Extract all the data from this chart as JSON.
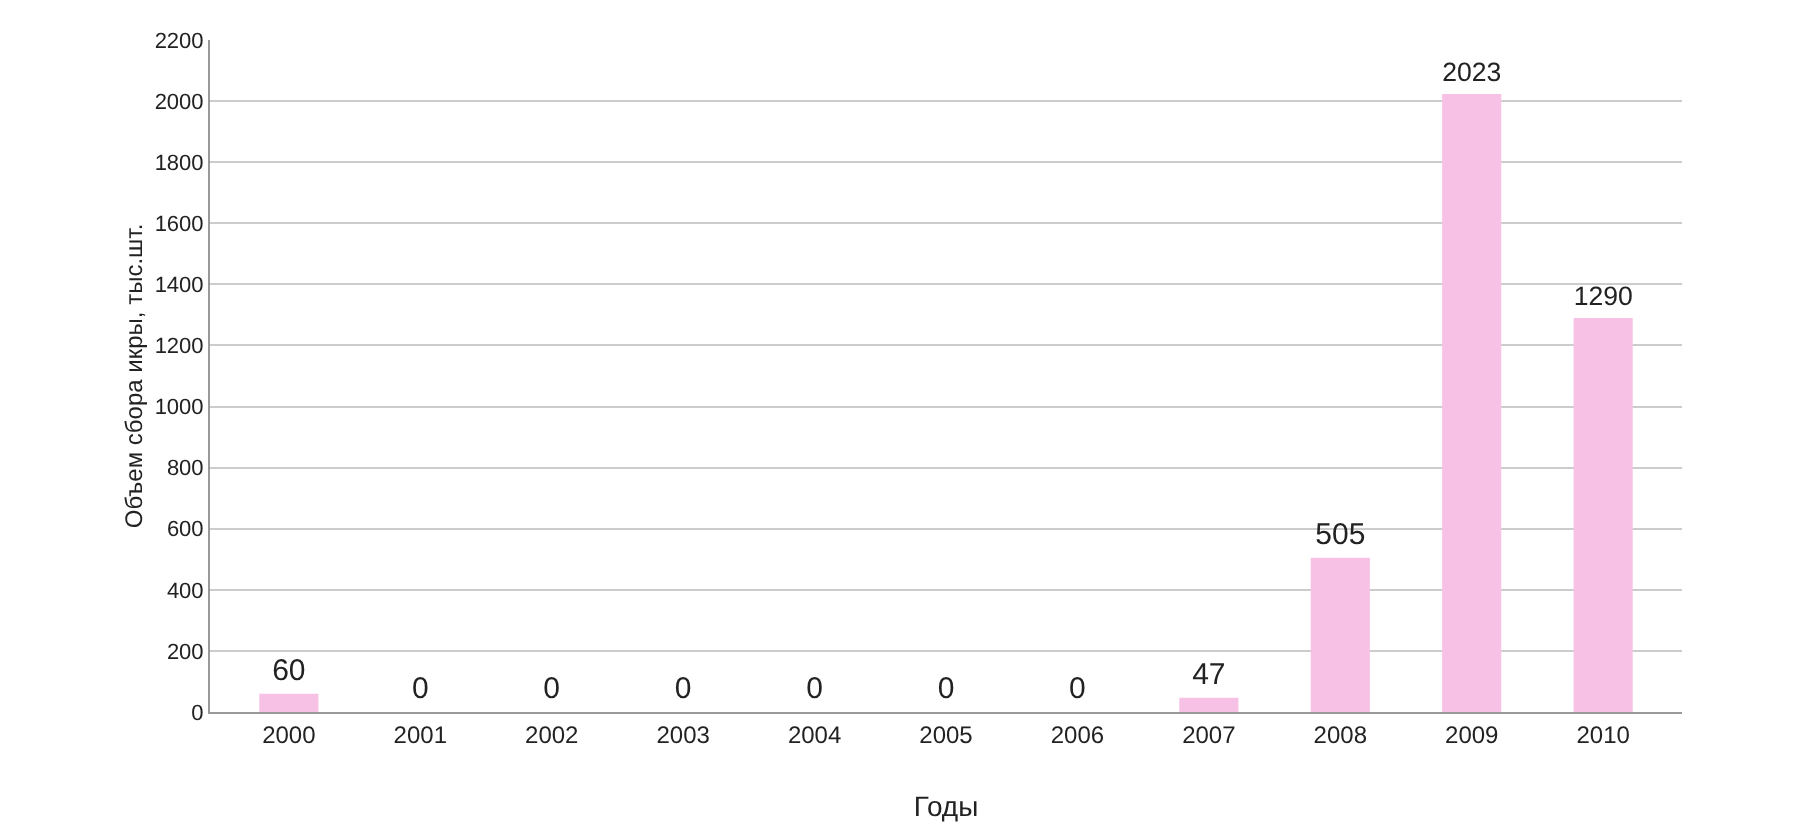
{
  "chart_data": {
    "type": "bar",
    "categories": [
      "2000",
      "2001",
      "2002",
      "2003",
      "2004",
      "2005",
      "2006",
      "2007",
      "2008",
      "2009",
      "2010"
    ],
    "values": [
      60,
      0,
      0,
      0,
      0,
      0,
      0,
      47,
      505,
      2023,
      1290
    ],
    "color": "#f7c1e6",
    "xlabel": "Годы",
    "ylabel": "Объем сбора икры, тыс.шт.",
    "ylim": [
      0,
      2200
    ],
    "yticks": [
      0,
      200,
      400,
      600,
      800,
      1000,
      1200,
      1400,
      1600,
      1800,
      2000,
      2200
    ],
    "grid": "y",
    "data_labels": true
  }
}
